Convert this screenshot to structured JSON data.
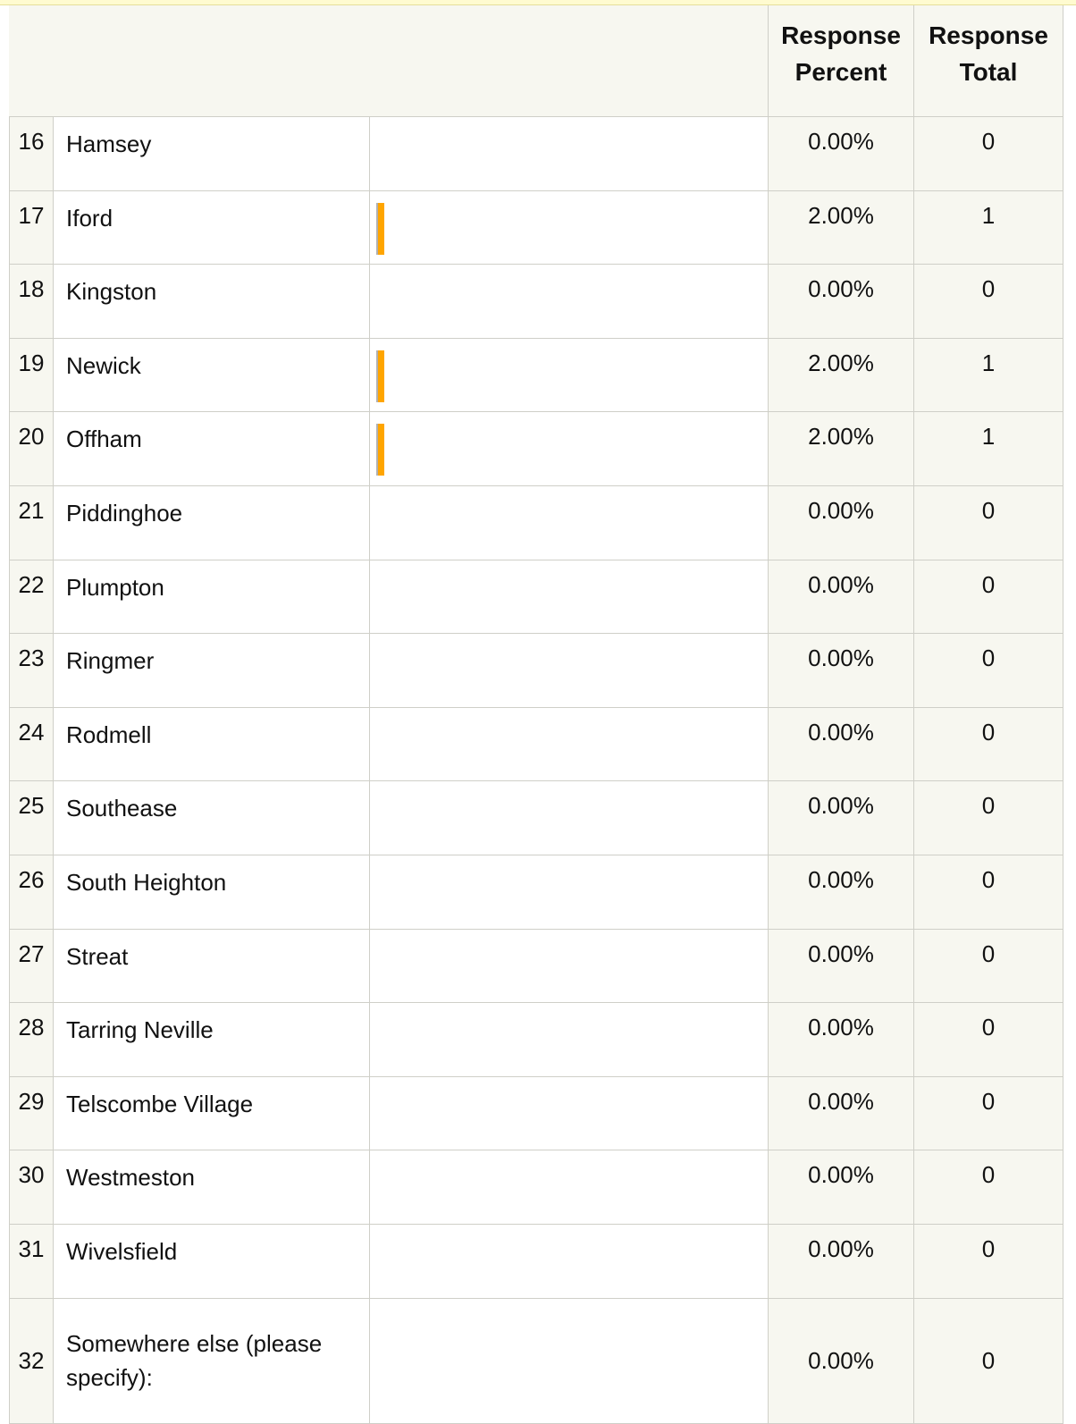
{
  "table": {
    "header": [
      "Response Percent",
      "Response Total"
    ],
    "rows": [
      [
        "16",
        "Hamsey",
        "0.00%",
        "0"
      ],
      [
        "17",
        "Iford",
        "2.00%",
        "1"
      ],
      [
        "18",
        "Kingston",
        "0.00%",
        "0"
      ],
      [
        "19",
        "Newick",
        "2.00%",
        "1"
      ],
      [
        "20",
        "Offham",
        "2.00%",
        "1"
      ],
      [
        "21",
        "Piddinghoe",
        "0.00%",
        "0"
      ],
      [
        "22",
        "Plumpton",
        "0.00%",
        "0"
      ],
      [
        "23",
        "Ringmer",
        "0.00%",
        "0"
      ],
      [
        "24",
        "Rodmell",
        "0.00%",
        "0"
      ],
      [
        "25",
        "Southease",
        "0.00%",
        "0"
      ],
      [
        "26",
        "South Heighton",
        "0.00%",
        "0"
      ],
      [
        "27",
        "Streat",
        "0.00%",
        "0"
      ],
      [
        "28",
        "Tarring Neville",
        "0.00%",
        "0"
      ],
      [
        "29",
        "Telscombe Village",
        "0.00%",
        "0"
      ],
      [
        "30",
        "Westmeston",
        "0.00%",
        "0"
      ],
      [
        "31",
        "Wivelsfield",
        "0.00%",
        "0"
      ],
      [
        "32",
        "Somewhere else (please specify):",
        "0.00%",
        "0"
      ]
    ]
  }
}
